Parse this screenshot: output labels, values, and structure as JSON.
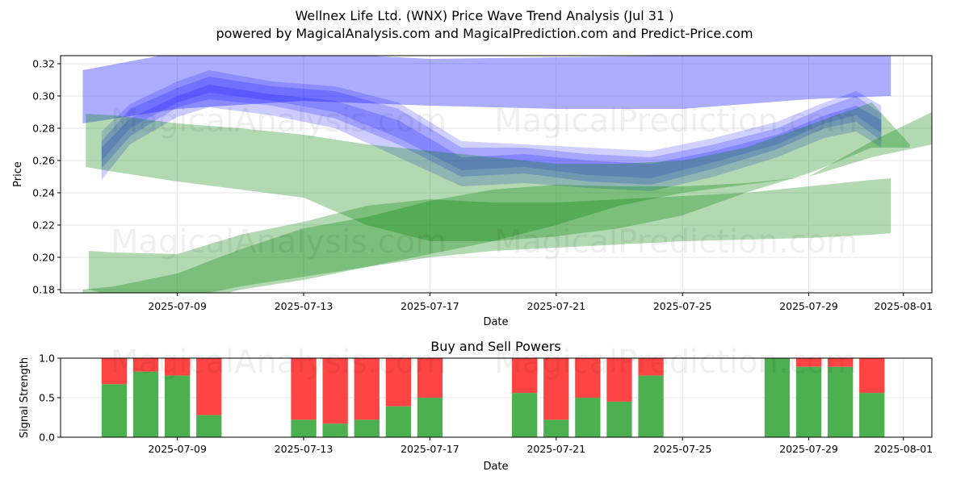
{
  "title_line1": "Wellnex Life Ltd. (WNX) Price Wave Trend Analysis (Jul 31 )",
  "title_line2": "powered by MagicalAnalysis.com and MagicalPrediction.com and Predict-Price.com",
  "watermarks": [
    "MagicalAnalysis.com",
    "MagicalPrediction.com"
  ],
  "colors": {
    "blue_band": "#0000ff",
    "green_band": "#008000",
    "buy": "#4caf50",
    "sell": "#ff4444",
    "grid": "#e6e6e6"
  },
  "chart_data": [
    {
      "type": "area",
      "title": "",
      "xlabel": "Date",
      "ylabel": "Price",
      "x_range_days": [
        -3.7,
        23.9
      ],
      "x_origin_date": "2025-07-09",
      "ylim": [
        0.178,
        0.325
      ],
      "x_ticks": [
        {
          "day": 0,
          "label": "2025-07-09"
        },
        {
          "day": 4,
          "label": "2025-07-13"
        },
        {
          "day": 8,
          "label": "2025-07-17"
        },
        {
          "day": 12,
          "label": "2025-07-21"
        },
        {
          "day": 16,
          "label": "2025-07-25"
        },
        {
          "day": 20,
          "label": "2025-07-29"
        },
        {
          "day": 23,
          "label": "2025-08-01"
        }
      ],
      "y_ticks": [
        0.18,
        0.2,
        0.22,
        0.24,
        0.26,
        0.28,
        0.3,
        0.32
      ],
      "y_tick_labels": [
        "0.18",
        "0.20",
        "0.22",
        "0.24",
        "0.26",
        "0.28",
        "0.30",
        "0.32"
      ],
      "grid": true,
      "series": [
        {
          "name": "blue-top-band",
          "color": "blue",
          "opacity": 0.32,
          "x": [
            -3,
            0,
            4,
            8,
            12,
            16,
            20,
            22.6
          ],
          "upper": [
            0.316,
            0.327,
            0.327,
            0.323,
            0.324,
            0.325,
            0.325,
            0.325
          ],
          "lower": [
            0.283,
            0.292,
            0.297,
            0.294,
            0.292,
            0.292,
            0.298,
            0.3
          ]
        },
        {
          "name": "blue-wave-1",
          "color": "blue",
          "opacity": 0.2,
          "x": [
            -2.4,
            -1.5,
            0,
            1,
            3,
            5,
            7,
            9,
            11,
            13,
            15,
            17,
            19,
            20.5,
            21.5,
            22.3
          ],
          "upper": [
            0.272,
            0.292,
            0.305,
            0.312,
            0.306,
            0.303,
            0.292,
            0.268,
            0.268,
            0.264,
            0.262,
            0.27,
            0.28,
            0.293,
            0.3,
            0.289
          ],
          "lower": [
            0.255,
            0.275,
            0.293,
            0.298,
            0.294,
            0.286,
            0.27,
            0.25,
            0.252,
            0.247,
            0.245,
            0.255,
            0.267,
            0.28,
            0.284,
            0.272
          ]
        },
        {
          "name": "blue-wave-2",
          "color": "blue",
          "opacity": 0.2,
          "x": [
            -2.4,
            -1.5,
            0,
            1,
            3,
            5,
            7,
            9,
            11,
            13,
            15,
            17,
            19,
            20.5,
            21.5,
            22.3
          ],
          "upper": [
            0.268,
            0.286,
            0.3,
            0.307,
            0.301,
            0.297,
            0.285,
            0.262,
            0.264,
            0.26,
            0.258,
            0.266,
            0.276,
            0.288,
            0.294,
            0.285
          ],
          "lower": [
            0.248,
            0.27,
            0.287,
            0.293,
            0.288,
            0.28,
            0.262,
            0.244,
            0.246,
            0.243,
            0.241,
            0.25,
            0.262,
            0.274,
            0.278,
            0.268
          ]
        },
        {
          "name": "blue-wave-3",
          "color": "blue",
          "opacity": 0.18,
          "x": [
            -2.4,
            -1.5,
            0,
            1,
            3,
            5,
            7,
            9,
            11,
            13,
            15,
            17,
            19,
            20.5,
            21.5,
            22.3
          ],
          "upper": [
            0.278,
            0.295,
            0.309,
            0.316,
            0.309,
            0.306,
            0.296,
            0.272,
            0.27,
            0.268,
            0.266,
            0.274,
            0.284,
            0.296,
            0.303,
            0.294
          ],
          "lower": [
            0.26,
            0.28,
            0.296,
            0.302,
            0.297,
            0.29,
            0.274,
            0.254,
            0.256,
            0.251,
            0.249,
            0.259,
            0.27,
            0.283,
            0.288,
            0.277
          ]
        },
        {
          "name": "green-upper-band",
          "color": "green",
          "opacity": 0.3,
          "x": [
            -2.9,
            -2,
            0,
            2,
            4,
            6,
            8,
            10,
            12,
            14,
            16,
            18,
            20,
            22,
            23.2
          ],
          "upper": [
            0.289,
            0.288,
            0.283,
            0.28,
            0.276,
            0.27,
            0.266,
            0.262,
            0.258,
            0.258,
            0.26,
            0.268,
            0.282,
            0.296,
            0.27
          ],
          "lower": [
            0.256,
            0.253,
            0.247,
            0.242,
            0.237,
            0.22,
            0.21,
            0.21,
            0.213,
            0.218,
            0.226,
            0.24,
            0.252,
            0.268,
            0.268
          ]
        },
        {
          "name": "green-rising-band",
          "color": "green",
          "opacity": 0.3,
          "x": [
            -3,
            -2,
            0,
            2,
            4,
            6,
            8,
            10,
            12,
            14,
            16,
            18,
            20,
            22,
            23.9
          ],
          "upper": [
            0.18,
            0.182,
            0.19,
            0.205,
            0.218,
            0.225,
            0.235,
            0.242,
            0.245,
            0.244,
            0.244,
            0.246,
            0.25,
            0.272,
            0.29
          ],
          "lower": [
            0.17,
            0.168,
            0.17,
            0.18,
            0.186,
            0.194,
            0.202,
            0.21,
            0.22,
            0.232,
            0.24,
            0.245,
            0.25,
            0.262,
            0.27
          ]
        },
        {
          "name": "green-lower-band",
          "color": "green",
          "opacity": 0.3,
          "x": [
            -2.8,
            -2,
            0,
            2,
            4,
            6,
            8,
            10,
            12,
            14,
            16,
            18,
            20,
            22,
            22.6
          ],
          "upper": [
            0.204,
            0.203,
            0.202,
            0.214,
            0.222,
            0.232,
            0.236,
            0.234,
            0.234,
            0.236,
            0.238,
            0.24,
            0.244,
            0.248,
            0.249
          ],
          "lower": [
            0.18,
            0.176,
            0.174,
            0.182,
            0.188,
            0.194,
            0.2,
            0.204,
            0.206,
            0.208,
            0.21,
            0.211,
            0.212,
            0.214,
            0.215
          ]
        }
      ]
    },
    {
      "type": "bar",
      "title": "Buy and Sell Powers",
      "xlabel": "Date",
      "ylabel": "Signal Strength",
      "ylim": [
        0,
        1.0
      ],
      "y_ticks": [
        0.0,
        0.5,
        1.0
      ],
      "y_tick_labels": [
        "0.0",
        "0.5",
        "1.0"
      ],
      "x_range_days": [
        -3.7,
        23.9
      ],
      "x_ticks": [
        {
          "day": 0,
          "label": "2025-07-09"
        },
        {
          "day": 4,
          "label": "2025-07-13"
        },
        {
          "day": 8,
          "label": "2025-07-17"
        },
        {
          "day": 12,
          "label": "2025-07-21"
        },
        {
          "day": 16,
          "label": "2025-07-25"
        },
        {
          "day": 20,
          "label": "2025-07-29"
        },
        {
          "day": 23,
          "label": "2025-08-01"
        }
      ],
      "grid": true,
      "bars": [
        {
          "day": -2,
          "buy": 0.67
        },
        {
          "day": -1,
          "buy": 0.83
        },
        {
          "day": 0,
          "buy": 0.78
        },
        {
          "day": 1,
          "buy": 0.28
        },
        {
          "day": 4,
          "buy": 0.22
        },
        {
          "day": 5,
          "buy": 0.17
        },
        {
          "day": 6,
          "buy": 0.22
        },
        {
          "day": 7,
          "buy": 0.39
        },
        {
          "day": 8,
          "buy": 0.5
        },
        {
          "day": 11,
          "buy": 0.56
        },
        {
          "day": 12,
          "buy": 0.22
        },
        {
          "day": 13,
          "buy": 0.5
        },
        {
          "day": 14,
          "buy": 0.45
        },
        {
          "day": 15,
          "buy": 0.78
        },
        {
          "day": 19,
          "buy": 1.0
        },
        {
          "day": 20,
          "buy": 0.89
        },
        {
          "day": 21,
          "buy": 0.89
        },
        {
          "day": 22,
          "buy": 0.56
        }
      ]
    }
  ]
}
